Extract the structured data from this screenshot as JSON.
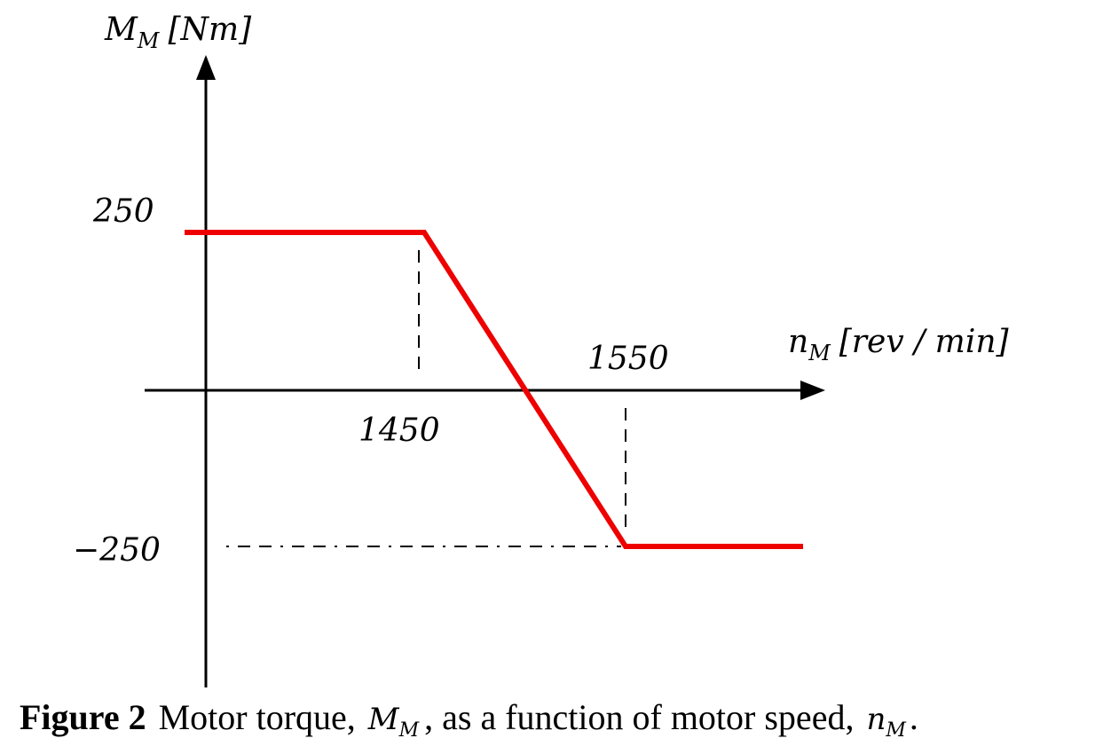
{
  "y_axis_label": {
    "symbol": "M",
    "subscript": "M",
    "unit": "[Nm]"
  },
  "x_axis_label": {
    "symbol": "n",
    "subscript": "M",
    "unit": "[rev / min]"
  },
  "labels": {
    "torque_max": "250",
    "torque_min": "−250",
    "speed_low": "1450",
    "speed_high": "1550"
  },
  "caption": {
    "label": "Figure 2",
    "text1": "Motor torque,",
    "symbol1": "M",
    "subscript1": "M",
    "text2": ", as a function of motor speed,",
    "symbol2": "n",
    "subscript2": "M",
    "end": "."
  }
}
